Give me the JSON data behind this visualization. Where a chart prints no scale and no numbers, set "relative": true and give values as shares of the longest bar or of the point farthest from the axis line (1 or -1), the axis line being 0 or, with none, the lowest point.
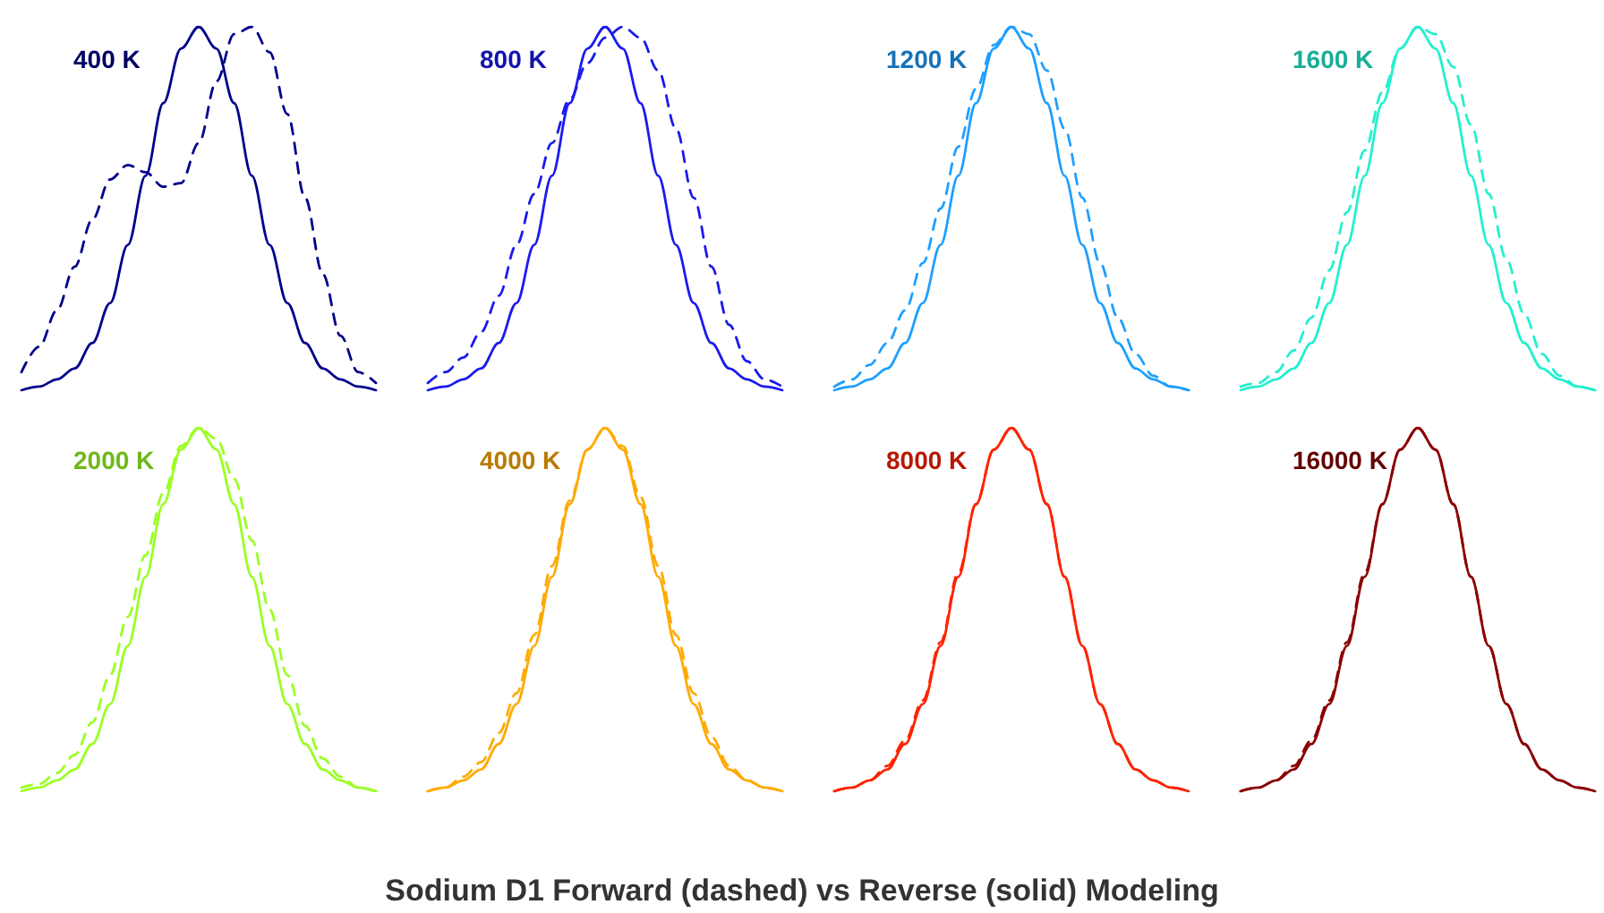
{
  "chart_data": [
    {
      "type": "line",
      "title": "400 K",
      "relative": true,
      "marker": "none",
      "categories": [
        null,
        null,
        null,
        null,
        null,
        null,
        null,
        null,
        null,
        null,
        null,
        null,
        null,
        null,
        null,
        null,
        null,
        null,
        null,
        null,
        null
      ],
      "series": [
        {
          "color": "#00008b",
          "line_style": "dashed",
          "values": [
            0.05,
            0.12,
            0.22,
            0.34,
            0.47,
            0.58,
            0.62,
            0.6,
            0.56,
            0.57,
            0.68,
            0.85,
            0.98,
            1.0,
            0.93,
            0.76,
            0.53,
            0.32,
            0.15,
            0.05,
            0.02
          ]
        },
        {
          "color": "#00008b",
          "line_style": "solid",
          "values": [
            0,
            0.01,
            0.03,
            0.06,
            0.13,
            0.24,
            0.4,
            0.59,
            0.79,
            0.94,
            1.0,
            0.94,
            0.79,
            0.59,
            0.4,
            0.24,
            0.13,
            0.06,
            0.03,
            0.01,
            0
          ]
        }
      ]
    },
    {
      "type": "line",
      "title": "800 K",
      "relative": true,
      "marker": "none",
      "categories": [
        null,
        null,
        null,
        null,
        null,
        null,
        null,
        null,
        null,
        null,
        null,
        null,
        null,
        null,
        null,
        null,
        null,
        null,
        null,
        null,
        null
      ],
      "series": [
        {
          "color": "#1a1aee",
          "line_style": "dashed",
          "values": [
            0.02,
            0.05,
            0.09,
            0.16,
            0.26,
            0.4,
            0.54,
            0.68,
            0.8,
            0.9,
            0.97,
            1.0,
            0.97,
            0.88,
            0.72,
            0.53,
            0.34,
            0.18,
            0.08,
            0.03,
            0.01
          ]
        },
        {
          "color": "#1a1aee",
          "line_style": "solid",
          "values": [
            0,
            0.01,
            0.03,
            0.06,
            0.13,
            0.24,
            0.4,
            0.59,
            0.79,
            0.94,
            1.0,
            0.94,
            0.79,
            0.59,
            0.4,
            0.24,
            0.13,
            0.06,
            0.03,
            0.01,
            0
          ]
        }
      ]
    },
    {
      "type": "line",
      "title": "1200 K",
      "relative": true,
      "marker": "none",
      "categories": [
        null,
        null,
        null,
        null,
        null,
        null,
        null,
        null,
        null,
        null,
        null,
        null,
        null,
        null,
        null,
        null,
        null,
        null,
        null,
        null,
        null
      ],
      "series": [
        {
          "color": "#1e9fff",
          "line_style": "dashed",
          "values": [
            0.01,
            0.03,
            0.07,
            0.13,
            0.22,
            0.35,
            0.5,
            0.67,
            0.83,
            0.95,
            1.0,
            0.98,
            0.88,
            0.72,
            0.53,
            0.35,
            0.2,
            0.1,
            0.04,
            0.01,
            0
          ]
        },
        {
          "color": "#1e9fff",
          "line_style": "solid",
          "values": [
            0,
            0.01,
            0.03,
            0.06,
            0.13,
            0.24,
            0.4,
            0.59,
            0.79,
            0.94,
            1.0,
            0.94,
            0.79,
            0.59,
            0.4,
            0.24,
            0.13,
            0.06,
            0.03,
            0.01,
            0
          ]
        }
      ]
    },
    {
      "type": "line",
      "title": "1600 K",
      "relative": true,
      "marker": "none",
      "categories": [
        null,
        null,
        null,
        null,
        null,
        null,
        null,
        null,
        null,
        null,
        null,
        null,
        null,
        null,
        null,
        null,
        null,
        null,
        null,
        null,
        null
      ],
      "series": [
        {
          "color": "#22f0d0",
          "line_style": "dashed",
          "values": [
            0.01,
            0.02,
            0.05,
            0.11,
            0.2,
            0.33,
            0.49,
            0.66,
            0.82,
            0.94,
            1.0,
            0.98,
            0.89,
            0.73,
            0.54,
            0.36,
            0.21,
            0.1,
            0.04,
            0.01,
            0
          ]
        },
        {
          "color": "#22f0d0",
          "line_style": "solid",
          "values": [
            0,
            0.01,
            0.03,
            0.06,
            0.13,
            0.24,
            0.4,
            0.59,
            0.79,
            0.94,
            1.0,
            0.94,
            0.79,
            0.59,
            0.4,
            0.24,
            0.13,
            0.06,
            0.03,
            0.01,
            0
          ]
        }
      ]
    },
    {
      "type": "line",
      "title": "2000 K",
      "relative": true,
      "marker": "none",
      "categories": [
        null,
        null,
        null,
        null,
        null,
        null,
        null,
        null,
        null,
        null,
        null,
        null,
        null,
        null,
        null,
        null,
        null,
        null,
        null,
        null,
        null
      ],
      "series": [
        {
          "color": "#99ff22",
          "line_style": "dashed",
          "values": [
            0.01,
            0.02,
            0.05,
            0.1,
            0.19,
            0.32,
            0.48,
            0.65,
            0.82,
            0.95,
            1.0,
            0.97,
            0.86,
            0.69,
            0.5,
            0.32,
            0.18,
            0.09,
            0.04,
            0.01,
            0
          ]
        },
        {
          "color": "#99ff22",
          "line_style": "solid",
          "values": [
            0,
            0.01,
            0.03,
            0.06,
            0.13,
            0.24,
            0.4,
            0.59,
            0.79,
            0.94,
            1.0,
            0.94,
            0.79,
            0.59,
            0.4,
            0.24,
            0.13,
            0.06,
            0.03,
            0.01,
            0
          ]
        }
      ]
    },
    {
      "type": "line",
      "title": "4000 K",
      "relative": true,
      "marker": "none",
      "categories": [
        null,
        null,
        null,
        null,
        null,
        null,
        null,
        null,
        null,
        null,
        null,
        null,
        null,
        null,
        null,
        null,
        null,
        null,
        null,
        null,
        null
      ],
      "series": [
        {
          "color": "#ffaa00",
          "line_style": "dashed",
          "values": [
            0,
            0.01,
            0.04,
            0.08,
            0.16,
            0.27,
            0.43,
            0.62,
            0.8,
            0.94,
            1.0,
            0.95,
            0.81,
            0.62,
            0.43,
            0.27,
            0.15,
            0.07,
            0.03,
            0.01,
            0
          ]
        },
        {
          "color": "#ffaa00",
          "line_style": "solid",
          "values": [
            0,
            0.01,
            0.03,
            0.06,
            0.13,
            0.24,
            0.4,
            0.59,
            0.79,
            0.94,
            1.0,
            0.94,
            0.79,
            0.59,
            0.4,
            0.24,
            0.13,
            0.06,
            0.03,
            0.01,
            0
          ]
        }
      ]
    },
    {
      "type": "line",
      "title": "8000 K",
      "relative": true,
      "marker": "none",
      "categories": [
        null,
        null,
        null,
        null,
        null,
        null,
        null,
        null,
        null,
        null,
        null,
        null,
        null,
        null,
        null,
        null,
        null,
        null,
        null,
        null,
        null
      ],
      "series": [
        {
          "color": "#ff2200",
          "line_style": "dashed",
          "values": [
            0,
            0.01,
            0.03,
            0.07,
            0.14,
            0.25,
            0.41,
            0.6,
            0.79,
            0.94,
            1.0,
            0.94,
            0.79,
            0.59,
            0.4,
            0.24,
            0.13,
            0.06,
            0.03,
            0.01,
            0
          ]
        },
        {
          "color": "#ff2200",
          "line_style": "solid",
          "values": [
            0,
            0.01,
            0.03,
            0.06,
            0.13,
            0.24,
            0.4,
            0.59,
            0.79,
            0.94,
            1.0,
            0.94,
            0.79,
            0.59,
            0.4,
            0.24,
            0.13,
            0.06,
            0.03,
            0.01,
            0
          ]
        }
      ]
    },
    {
      "type": "line",
      "title": "16000 K",
      "relative": true,
      "marker": "none",
      "categories": [
        null,
        null,
        null,
        null,
        null,
        null,
        null,
        null,
        null,
        null,
        null,
        null,
        null,
        null,
        null,
        null,
        null,
        null,
        null,
        null,
        null
      ],
      "series": [
        {
          "color": "#8b0000",
          "line_style": "dashed",
          "values": [
            0,
            0.01,
            0.03,
            0.07,
            0.14,
            0.25,
            0.41,
            0.6,
            0.79,
            0.94,
            1.0,
            0.94,
            0.79,
            0.59,
            0.4,
            0.24,
            0.13,
            0.06,
            0.03,
            0.01,
            0
          ]
        },
        {
          "color": "#8b0000",
          "line_style": "solid",
          "values": [
            0,
            0.01,
            0.03,
            0.06,
            0.13,
            0.24,
            0.4,
            0.59,
            0.79,
            0.94,
            1.0,
            0.94,
            0.79,
            0.59,
            0.4,
            0.24,
            0.13,
            0.06,
            0.03,
            0.01,
            0
          ]
        }
      ]
    },
    {
      "type": "other",
      "title": "Sodium D1 Forward (dashed) vs Reverse (solid) Modeling"
    }
  ]
}
